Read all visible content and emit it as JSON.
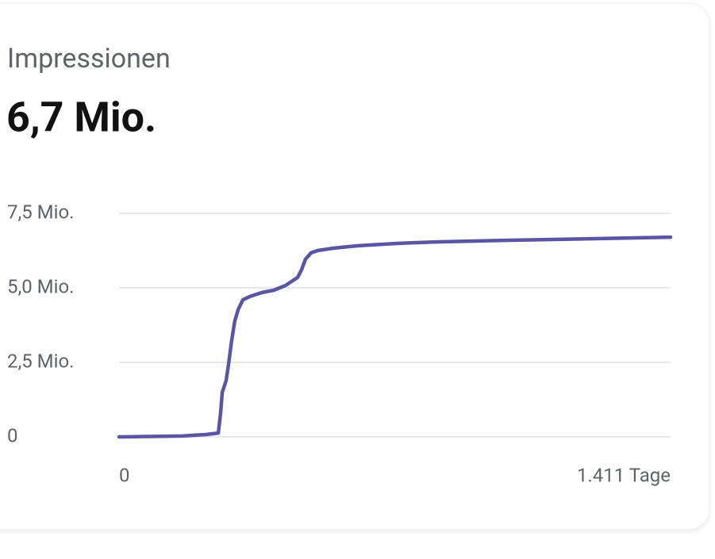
{
  "chart_data": {
    "type": "line",
    "title": "Impressionen",
    "headline": "6,7 Mio.",
    "x": [
      0,
      162,
      223,
      254,
      260,
      264,
      274,
      280,
      288,
      296,
      305,
      317,
      335,
      365,
      396,
      426,
      457,
      467,
      477,
      491,
      508,
      548,
      609,
      711,
      812,
      1015,
      1218,
      1411
    ],
    "series": [
      {
        "color": "#5b55a6",
        "values": [
          0,
          0.03,
          0.08,
          0.13,
          0.82,
          1.49,
          1.89,
          2.42,
          3.22,
          3.88,
          4.28,
          4.6,
          4.71,
          4.84,
          4.92,
          5.08,
          5.35,
          5.61,
          5.96,
          6.17,
          6.25,
          6.33,
          6.41,
          6.49,
          6.54,
          6.6,
          6.65,
          6.7
        ]
      }
    ],
    "xlim": [
      0,
      1411
    ],
    "xticks": [
      0,
      {
        "value": 1411,
        "label": "1.411 Tage"
      }
    ],
    "ylim": [
      0,
      7.5
    ],
    "yticks": [
      {
        "value": 0,
        "label": "0"
      },
      {
        "value": 2.5,
        "label": "2,5 Mio."
      },
      {
        "value": 5,
        "label": "5,0 Mio."
      },
      {
        "value": 7.5,
        "label": "7,5 Mio."
      }
    ],
    "grid": true
  }
}
